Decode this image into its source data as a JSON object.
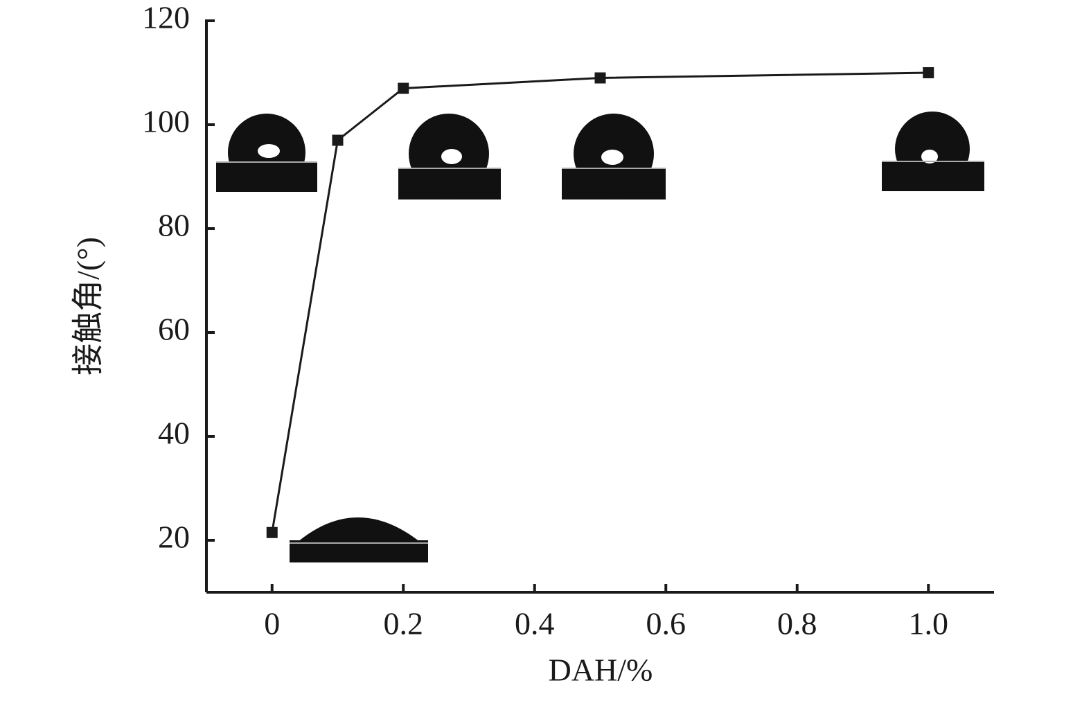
{
  "chart_data": {
    "type": "line",
    "x": [
      0,
      0.1,
      0.2,
      0.5,
      1.0
    ],
    "series": [
      {
        "color": "#1a1a1a",
        "values": [
          21.5,
          97,
          107,
          109,
          110
        ]
      }
    ],
    "xlabel": "DAH/%",
    "ylabel": "接触角/(°)",
    "xlim": [
      -0.1,
      1.1
    ],
    "ylim": [
      10,
      120
    ],
    "xticks": [
      0,
      0.2,
      0.4,
      0.6,
      0.8,
      {
        "value": 1,
        "label": "1.0"
      }
    ],
    "yticks": [
      20,
      40,
      60,
      80,
      100,
      120
    ]
  }
}
